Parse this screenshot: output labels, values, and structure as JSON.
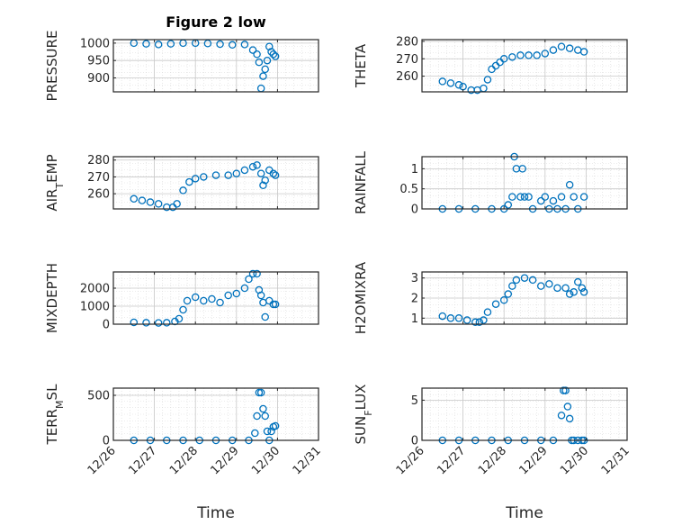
{
  "figure": {
    "title": "Figure 2 low",
    "xlabel": "Time"
  },
  "colors": {
    "marker": "#0072BD",
    "axis": "#262626",
    "grid": "#D9D9D9",
    "background": "#FFFFFF"
  },
  "chart_data": [
    {
      "type": "scatter",
      "ylabel": "PRESSURE",
      "xtick_labels": [
        "12/26",
        "12/27",
        "12/28",
        "12/29",
        "12/30",
        "12/31"
      ],
      "xlim": [
        0,
        5
      ],
      "ylim": [
        860,
        1010
      ],
      "yticks": [
        900,
        950,
        1000
      ],
      "x": [
        0.5,
        0.8,
        1.1,
        1.4,
        1.7,
        2.0,
        2.3,
        2.6,
        2.9,
        3.2,
        3.4,
        3.5,
        3.55,
        3.6,
        3.65,
        3.7,
        3.75,
        3.8,
        3.85,
        3.9,
        3.95
      ],
      "y": [
        1000,
        998,
        996,
        998,
        1000,
        1000,
        999,
        997,
        995,
        996,
        980,
        968,
        945,
        870,
        905,
        925,
        950,
        990,
        975,
        968,
        962
      ]
    },
    {
      "type": "scatter",
      "ylabel": "THETA",
      "xtick_labels": [
        "12/26",
        "12/27",
        "12/28",
        "12/29",
        "12/30",
        "12/31"
      ],
      "xlim": [
        0,
        5
      ],
      "ylim": [
        251,
        281
      ],
      "yticks": [
        260,
        270,
        280
      ],
      "x": [
        0.5,
        0.7,
        0.9,
        1.0,
        1.2,
        1.35,
        1.5,
        1.6,
        1.7,
        1.8,
        1.9,
        2.0,
        2.2,
        2.4,
        2.6,
        2.8,
        3.0,
        3.2,
        3.4,
        3.6,
        3.8,
        3.95
      ],
      "y": [
        257,
        256,
        255,
        254,
        252,
        252,
        253,
        258,
        264,
        266,
        268,
        270,
        271,
        272,
        272,
        272,
        273,
        275,
        277,
        276,
        275,
        274
      ]
    },
    {
      "type": "scatter",
      "ylabel": "AIR_TEMP",
      "xtick_labels": [
        "12/26",
        "12/27",
        "12/28",
        "12/29",
        "12/30",
        "12/31"
      ],
      "xlim": [
        0,
        5
      ],
      "ylim": [
        251,
        282
      ],
      "yticks": [
        260,
        270,
        280
      ],
      "x": [
        0.5,
        0.7,
        0.9,
        1.1,
        1.3,
        1.45,
        1.55,
        1.7,
        1.85,
        2.0,
        2.2,
        2.5,
        2.8,
        3.0,
        3.2,
        3.4,
        3.5,
        3.6,
        3.65,
        3.7,
        3.8,
        3.9,
        3.95
      ],
      "y": [
        257,
        256,
        255,
        254,
        252,
        252,
        254,
        262,
        267,
        269,
        270,
        271,
        271,
        272,
        274,
        276,
        277,
        272,
        265,
        268,
        274,
        272,
        271
      ]
    },
    {
      "type": "scatter",
      "ylabel": "RAINFALL",
      "xtick_labels": [
        "12/26",
        "12/27",
        "12/28",
        "12/29",
        "12/30",
        "12/31"
      ],
      "xlim": [
        0,
        5
      ],
      "ylim": [
        0,
        1.3
      ],
      "yticks": [
        0,
        0.5,
        1
      ],
      "x": [
        0.5,
        0.9,
        1.3,
        1.7,
        2.0,
        2.1,
        2.2,
        2.25,
        2.3,
        2.4,
        2.45,
        2.5,
        2.6,
        2.7,
        2.9,
        3.0,
        3.1,
        3.2,
        3.3,
        3.4,
        3.5,
        3.6,
        3.7,
        3.8,
        3.95
      ],
      "y": [
        0,
        0,
        0,
        0,
        0,
        0.1,
        0.3,
        1.3,
        1.0,
        0.3,
        1.0,
        0.3,
        0.3,
        0,
        0.2,
        0.3,
        0,
        0.2,
        0,
        0.3,
        0,
        0.6,
        0.3,
        0,
        0.3
      ]
    },
    {
      "type": "scatter",
      "ylabel": "MIXDEPTH",
      "xtick_labels": [
        "12/26",
        "12/27",
        "12/28",
        "12/29",
        "12/30",
        "12/31"
      ],
      "xlim": [
        0,
        5
      ],
      "ylim": [
        0,
        2900
      ],
      "yticks": [
        0,
        1000,
        2000
      ],
      "x": [
        0.5,
        0.8,
        1.1,
        1.3,
        1.5,
        1.6,
        1.7,
        1.8,
        2.0,
        2.2,
        2.4,
        2.6,
        2.8,
        3.0,
        3.2,
        3.3,
        3.4,
        3.5,
        3.55,
        3.6,
        3.65,
        3.7,
        3.8,
        3.9,
        3.95
      ],
      "y": [
        100,
        80,
        70,
        80,
        150,
        300,
        800,
        1300,
        1500,
        1300,
        1400,
        1200,
        1600,
        1700,
        2000,
        2500,
        2800,
        2800,
        1900,
        1600,
        1200,
        400,
        1300,
        1100,
        1100
      ]
    },
    {
      "type": "scatter",
      "ylabel": "H2OMIXRA",
      "xtick_labels": [
        "12/26",
        "12/27",
        "12/28",
        "12/29",
        "12/30",
        "12/31"
      ],
      "xlim": [
        0,
        5
      ],
      "ylim": [
        0.7,
        3.3
      ],
      "yticks": [
        1,
        2,
        3
      ],
      "x": [
        0.5,
        0.7,
        0.9,
        1.1,
        1.3,
        1.4,
        1.5,
        1.6,
        1.8,
        2.0,
        2.1,
        2.2,
        2.3,
        2.5,
        2.7,
        2.9,
        3.1,
        3.3,
        3.5,
        3.6,
        3.7,
        3.8,
        3.9,
        3.95
      ],
      "y": [
        1.1,
        1.0,
        1.0,
        0.9,
        0.8,
        0.8,
        0.9,
        1.3,
        1.7,
        1.9,
        2.2,
        2.6,
        2.9,
        3.0,
        2.9,
        2.6,
        2.7,
        2.5,
        2.5,
        2.2,
        2.3,
        2.8,
        2.5,
        2.3
      ]
    },
    {
      "type": "scatter",
      "ylabel": "TERR_MSL",
      "xtick_labels": [
        "12/26",
        "12/27",
        "12/28",
        "12/29",
        "12/30",
        "12/31"
      ],
      "xlim": [
        0,
        5
      ],
      "ylim": [
        0,
        580
      ],
      "yticks": [
        0,
        500
      ],
      "x": [
        0.5,
        0.9,
        1.3,
        1.7,
        2.1,
        2.5,
        2.9,
        3.3,
        3.45,
        3.5,
        3.55,
        3.6,
        3.65,
        3.7,
        3.75,
        3.8,
        3.85,
        3.9,
        3.95
      ],
      "y": [
        0,
        0,
        0,
        0,
        0,
        0,
        0,
        0,
        80,
        270,
        530,
        530,
        350,
        270,
        100,
        0,
        100,
        150,
        160
      ]
    },
    {
      "type": "scatter",
      "ylabel": "SUN_FLUX",
      "xtick_labels": [
        "12/26",
        "12/27",
        "12/28",
        "12/29",
        "12/30",
        "12/31"
      ],
      "xlim": [
        0,
        5
      ],
      "ylim": [
        0,
        6.5
      ],
      "yticks": [
        0,
        5
      ],
      "x": [
        0.5,
        0.9,
        1.3,
        1.7,
        2.1,
        2.5,
        2.9,
        3.2,
        3.4,
        3.45,
        3.5,
        3.55,
        3.6,
        3.65,
        3.7,
        3.8,
        3.9,
        3.95
      ],
      "y": [
        0,
        0,
        0,
        0,
        0,
        0,
        0,
        0,
        3.1,
        6.2,
        6.2,
        4.2,
        2.7,
        0,
        0,
        0,
        0,
        0
      ]
    }
  ]
}
